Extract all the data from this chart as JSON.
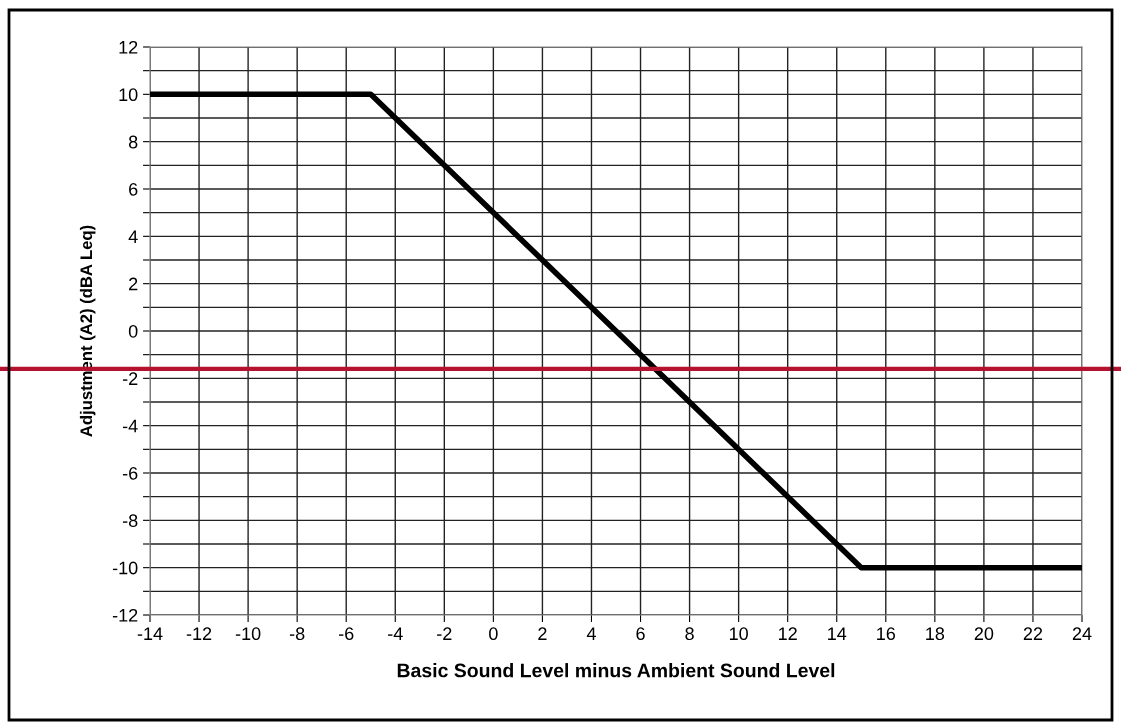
{
  "chart_data": {
    "type": "line",
    "xlabel": "Basic Sound Level minus Ambient Sound Level",
    "ylabel": "Adjustment (A2) (dBA Leq)",
    "x": [
      -14,
      -5,
      15,
      24
    ],
    "series": [
      {
        "color": "#000000",
        "values": [
          10,
          10,
          -10,
          -10
        ]
      }
    ],
    "xlim": [
      -14,
      24
    ],
    "xticks": [
      -14,
      -12,
      -10,
      -8,
      -6,
      -4,
      -2,
      0,
      2,
      4,
      6,
      8,
      10,
      12,
      14,
      16,
      18,
      20,
      22,
      24
    ],
    "ylim": [
      -12,
      12
    ],
    "yticks": [
      -12,
      {
        "value": -11,
        "label": null
      },
      -10,
      {
        "value": -9,
        "label": null
      },
      -8,
      {
        "value": -7,
        "label": null
      },
      -6,
      {
        "value": -5,
        "label": null
      },
      -4,
      {
        "value": -3,
        "label": null
      },
      -2,
      {
        "value": -1,
        "label": null
      },
      0,
      {
        "value": 1,
        "label": null
      },
      2,
      {
        "value": 3,
        "label": null
      },
      4,
      {
        "value": 5,
        "label": null
      },
      6,
      {
        "value": 7,
        "label": null
      },
      8,
      {
        "value": 9,
        "label": null
      },
      10,
      {
        "value": 11,
        "label": null
      },
      12
    ],
    "ref_lines": [
      {
        "axis": "y",
        "value": -1.6,
        "color": "#b5122f",
        "line_style": "solid"
      }
    ],
    "grid": true,
    "marker": "none",
    "line_style": "solid"
  }
}
